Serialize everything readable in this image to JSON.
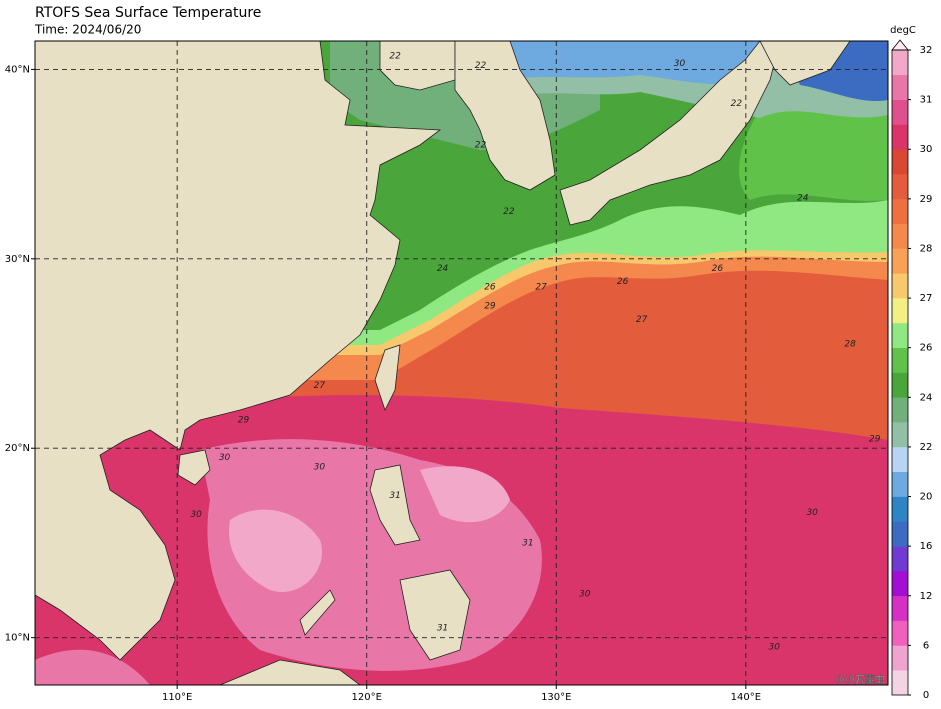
{
  "title": "RTOFS Sea Surface Temperature",
  "subtitle": "Time: 2024/06/20",
  "map": {
    "xlim": [
      102.5,
      147.5
    ],
    "ylim": [
      7.5,
      41.5
    ],
    "xticks": [
      {
        "value": 110,
        "label": "110°E"
      },
      {
        "value": 120,
        "label": "120°E"
      },
      {
        "value": 130,
        "label": "130°E"
      },
      {
        "value": 140,
        "label": "140°E"
      }
    ],
    "yticks": [
      {
        "value": 10,
        "label": "10°N"
      },
      {
        "value": 20,
        "label": "20°N"
      },
      {
        "value": 30,
        "label": "30°N"
      },
      {
        "value": 40,
        "label": "40°N"
      }
    ],
    "grid": true
  },
  "colorbar": {
    "label": "degC",
    "levels": [
      0,
      3,
      6,
      9,
      12,
      14,
      16,
      18,
      20,
      21,
      22,
      23,
      24,
      25,
      26,
      26.5,
      27,
      27.5,
      28,
      28.5,
      29,
      29.5,
      30,
      30.5,
      31,
      31.5,
      32
    ],
    "colors": [
      "#f3d3e4",
      "#f1a3cf",
      "#f061bd",
      "#d62fc6",
      "#a20fd3",
      "#6f3bd0",
      "#3b6cc2",
      "#2f84c6",
      "#6ea9df",
      "#b7d5f3",
      "#93bfa7",
      "#71b07a",
      "#4aa53a",
      "#61c24a",
      "#8fe882",
      "#f2f082",
      "#f7c86c",
      "#f7a257",
      "#f5884c",
      "#ee6f40",
      "#e35c3c",
      "#d94832",
      "#d9356b",
      "#e0508d",
      "#e877a8",
      "#f2a9c9"
    ],
    "extend_color": "#fbe9f1",
    "ticks": [
      0,
      6,
      12,
      16,
      20,
      22,
      24,
      26,
      27,
      28,
      29,
      30,
      31,
      32
    ]
  },
  "contour_labels": [
    {
      "value": 22,
      "lon": 121.5,
      "lat": 40.7
    },
    {
      "value": 22,
      "lon": 126,
      "lat": 40.2
    },
    {
      "value": 30,
      "lon": 136.5,
      "lat": 40.3
    },
    {
      "value": 22,
      "lon": 139.5,
      "lat": 38.2
    },
    {
      "value": 22,
      "lon": 126,
      "lat": 36
    },
    {
      "value": 22,
      "lon": 127.5,
      "lat": 32.5
    },
    {
      "value": 24,
      "lon": 124,
      "lat": 29.5
    },
    {
      "value": 26,
      "lon": 126.5,
      "lat": 28.5
    },
    {
      "value": 27,
      "lon": 129.2,
      "lat": 28.5
    },
    {
      "value": 29,
      "lon": 126.5,
      "lat": 27.5
    },
    {
      "value": 26,
      "lon": 133.5,
      "lat": 28.8
    },
    {
      "value": 26,
      "lon": 138.5,
      "lat": 29.5
    },
    {
      "value": 27,
      "lon": 134.5,
      "lat": 26.8
    },
    {
      "value": 24,
      "lon": 143,
      "lat": 33.2
    },
    {
      "value": 28,
      "lon": 145.5,
      "lat": 25.5
    },
    {
      "value": 27,
      "lon": 117.5,
      "lat": 23.3
    },
    {
      "value": 29,
      "lon": 113.5,
      "lat": 21.5
    },
    {
      "value": 30,
      "lon": 112.5,
      "lat": 19.5
    },
    {
      "value": 30,
      "lon": 117.5,
      "lat": 19
    },
    {
      "value": 31,
      "lon": 121.5,
      "lat": 17.5
    },
    {
      "value": 31,
      "lon": 128.5,
      "lat": 15
    },
    {
      "value": 30,
      "lon": 131.5,
      "lat": 12.3
    },
    {
      "value": 30,
      "lon": 111,
      "lat": 16.5
    },
    {
      "value": 31,
      "lon": 124,
      "lat": 10.5
    },
    {
      "value": 30,
      "lon": 141.5,
      "lat": 9.5
    },
    {
      "value": 29,
      "lon": 146.8,
      "lat": 20.5
    },
    {
      "value": 30,
      "lon": 143.5,
      "lat": 16.6
    }
  ],
  "watermark": "小小万能虫"
}
